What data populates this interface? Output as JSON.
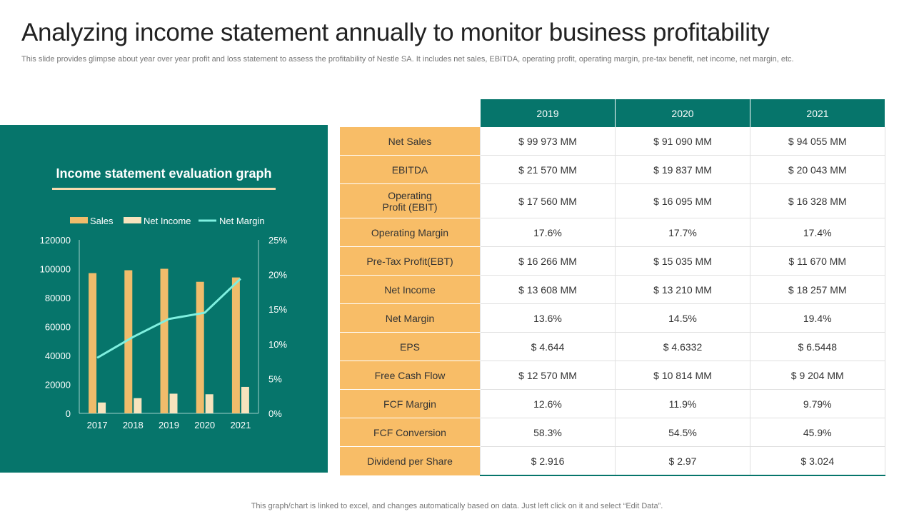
{
  "slide": {
    "title": "Analyzing income statement annually to monitor business profitability",
    "subtitle": "This slide provides glimpse about year over year profit and loss statement to assess the profitability of Nestle SA. It includes net sales, EBITDA, operating profit, operating margin, pre-tax benefit, net income, net margin, etc.",
    "footer": "This graph/chart is linked to excel, and changes automatically based on data. Just left click on it and select “Edit Data”."
  },
  "colors": {
    "panel": "#06756b",
    "sales_bar": "#f0bc6b",
    "net_income_bar": "#f7e3bd",
    "net_margin_line": "#7ff0e0",
    "label_fill": "#f8bd67"
  },
  "chart_data": {
    "type": "bar",
    "title": "Income statement evaluation graph",
    "categories": [
      "2017",
      "2018",
      "2019",
      "2020",
      "2021"
    ],
    "series": [
      {
        "name": "Sales",
        "type": "bar",
        "axis": "left",
        "values": [
          97000,
          99000,
          100000,
          91000,
          94000
        ]
      },
      {
        "name": "Net Income",
        "type": "bar",
        "axis": "left",
        "values": [
          7500,
          10500,
          13600,
          13200,
          18300
        ]
      },
      {
        "name": "Net Margin",
        "type": "line",
        "axis": "right",
        "values": [
          8,
          11,
          13.6,
          14.5,
          19.4
        ]
      }
    ],
    "ylim": [
      0,
      120000
    ],
    "yticks": [
      "0",
      "20000",
      "40000",
      "60000",
      "80000",
      "100000",
      "120000"
    ],
    "y2lim": [
      0,
      25
    ],
    "y2ticks": [
      "0%",
      "5%",
      "10%",
      "15%",
      "20%",
      "25%"
    ],
    "legend": "top",
    "grid": false
  },
  "table": {
    "years": [
      "2019",
      "2020",
      "2021"
    ],
    "rows": [
      {
        "label": "Net Sales",
        "values": [
          "$ 99 973 MM",
          "$ 91 090 MM",
          "$ 94 055 MM"
        ]
      },
      {
        "label": "EBITDA",
        "values": [
          "$ 21 570 MM",
          "$ 19 837 MM",
          "$ 20 043 MM"
        ]
      },
      {
        "label_lines": [
          "Operating",
          "Profit (EBIT)"
        ],
        "values": [
          "$ 17 560 MM",
          "$ 16 095 MM",
          "$ 16 328 MM"
        ]
      },
      {
        "label": "Operating Margin",
        "values": [
          "17.6%",
          "17.7%",
          "17.4%"
        ]
      },
      {
        "label": "Pre-Tax Profit(EBT)",
        "values": [
          "$ 16 266 MM",
          "$ 15 035 MM",
          "$ 11 670 MM"
        ]
      },
      {
        "label": "Net Income",
        "values": [
          "$ 13 608 MM",
          "$ 13 210 MM",
          "$ 18 257 MM"
        ]
      },
      {
        "label": "Net Margin",
        "values": [
          "13.6%",
          "14.5%",
          "19.4%"
        ]
      },
      {
        "label": "EPS",
        "values": [
          "$ 4.644",
          "$ 4.6332",
          "$ 6.5448"
        ]
      },
      {
        "label": "Free Cash Flow",
        "values": [
          "$ 12 570 MM",
          "$ 10 814 MM",
          "$ 9 204 MM"
        ]
      },
      {
        "label": "FCF Margin",
        "values": [
          "12.6%",
          "11.9%",
          "9.79%"
        ]
      },
      {
        "label": "FCF Conversion",
        "values": [
          "58.3%",
          "54.5%",
          "45.9%"
        ]
      },
      {
        "label": "Dividend per Share",
        "values": [
          "$ 2.916",
          "$ 2.97",
          "$ 3.024"
        ]
      }
    ]
  }
}
